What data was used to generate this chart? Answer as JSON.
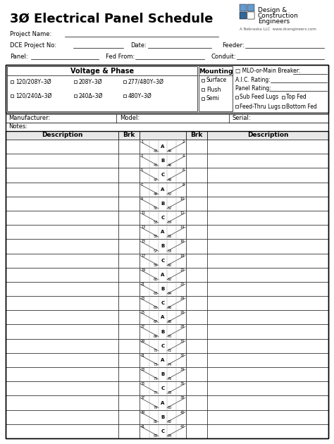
{
  "title": "3Ø Electrical Panel Schedule",
  "logo_colors": {
    "blue1": "#6699cc",
    "blue2": "#6699cc",
    "blue3": "#336699",
    "green": "#99cc66",
    "white": "#ffffff"
  },
  "logo_text_line1": "Design &",
  "logo_text_line2": "Construction",
  "logo_text_line3": "Engineers",
  "logo_subtext": "A Nebraska LLC  www.dcengineers.com",
  "fields_line1": [
    "Project Name:",
    "",
    "",
    ""
  ],
  "fields_line2": [
    "DCE Project No:",
    "Date:",
    "Feeder:"
  ],
  "fields_line3": [
    "Panel:",
    "Fed From:",
    "Conduit:"
  ],
  "voltage_options_row1": [
    "120/208Y–3Ø",
    "208Y–3Ø",
    "277/480Y–3Ø"
  ],
  "voltage_options_row2": [
    "120/240Δ–3Ø",
    "240Δ–3Ø",
    "480Y–3Ø"
  ],
  "mounting_options": [
    "Surface",
    "Flush",
    "Semi"
  ],
  "right_options_col1": [
    "MLO-or-Main Breaker:",
    "A.I.C. Rating:",
    "Panel Rating:",
    "Sub Feed Lugs",
    "Feed-Thru Lugs"
  ],
  "right_options_col2": [
    "Top Fed",
    "Bottom Fed"
  ],
  "phases": [
    "A",
    "B",
    "C"
  ],
  "circuit_count": 42,
  "background": "#ffffff",
  "border_color": "#000000",
  "grid_color": "#cccccc",
  "header_bg": "#f0f0f0"
}
